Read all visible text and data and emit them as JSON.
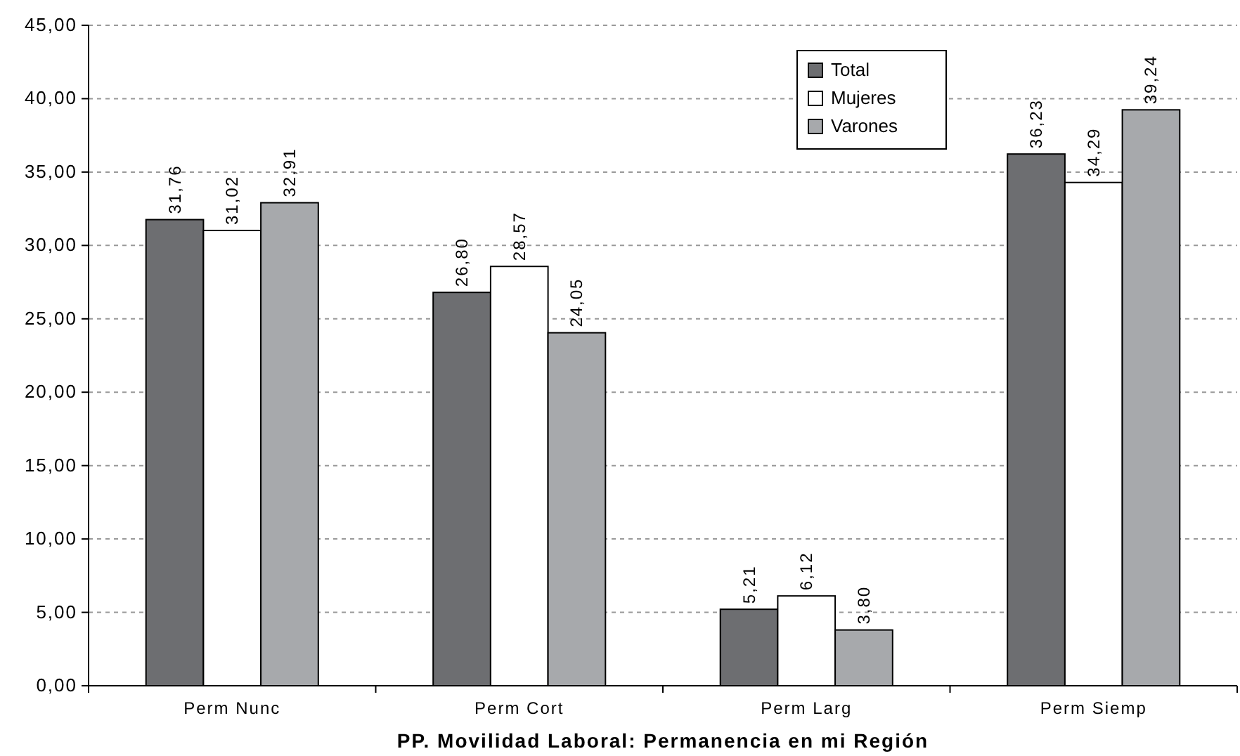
{
  "chart_data": {
    "type": "bar",
    "xlabel": "PP. Movilidad Laboral: Permanencia en mi Región",
    "categories": [
      "Perm Nunc",
      "Perm Cort",
      "Perm Larg",
      "Perm Siemp"
    ],
    "series": [
      {
        "name": "Total",
        "color": "#6d6e71",
        "values": [
          31.76,
          26.8,
          5.21,
          36.23
        ],
        "value_labels": [
          "31,76",
          "26,80",
          "5,21",
          "36,23"
        ]
      },
      {
        "name": "Mujeres",
        "color": "#ffffff",
        "values": [
          31.02,
          28.57,
          6.12,
          34.29
        ],
        "value_labels": [
          "31,02",
          "28,57",
          "6,12",
          "34,29"
        ]
      },
      {
        "name": "Varones",
        "color": "#a7a9ac",
        "values": [
          32.91,
          24.05,
          3.8,
          39.24
        ],
        "value_labels": [
          "32,91",
          "24,05",
          "3,80",
          "39,24"
        ]
      }
    ],
    "ylim": [
      0,
      45
    ],
    "yticks": [
      {
        "value": 0,
        "label": "0,00"
      },
      {
        "value": 5,
        "label": "5,00"
      },
      {
        "value": 10,
        "label": "10,00"
      },
      {
        "value": 15,
        "label": "15,00"
      },
      {
        "value": 20,
        "label": "20,00"
      },
      {
        "value": 25,
        "label": "25,00"
      },
      {
        "value": 30,
        "label": "30,00"
      },
      {
        "value": 35,
        "label": "35,00"
      },
      {
        "value": 40,
        "label": "40,00"
      },
      {
        "value": 45,
        "label": "45,00"
      }
    ],
    "grid": "y",
    "legend": "top right"
  }
}
